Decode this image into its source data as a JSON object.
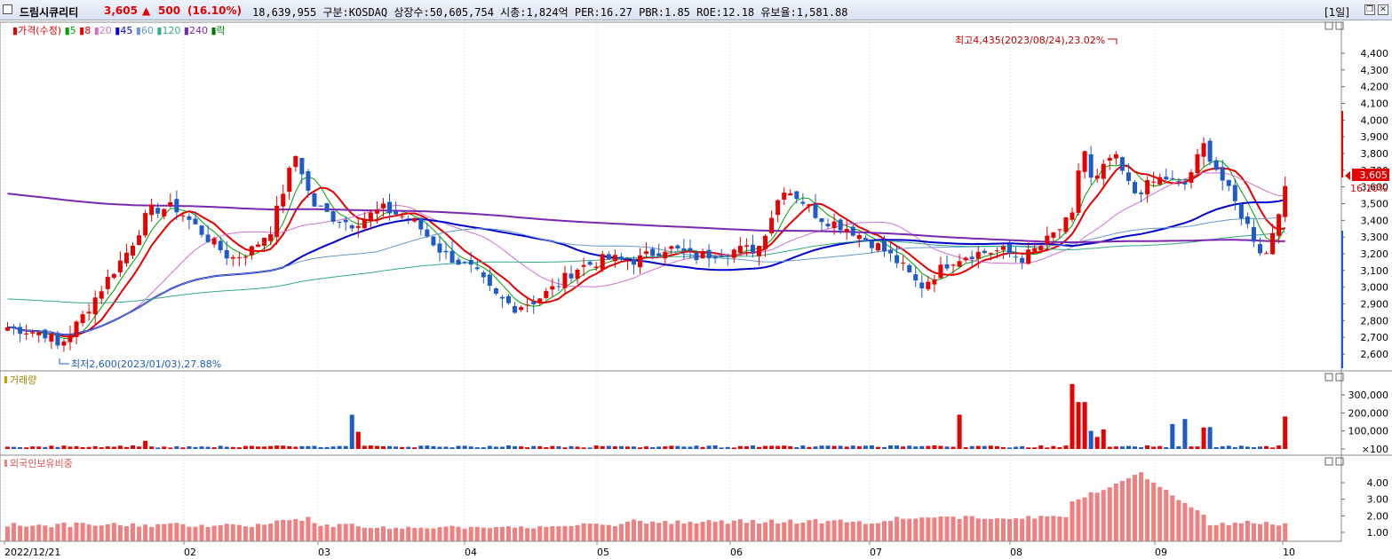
{
  "header": {
    "name": "드림시큐리티",
    "price": "3,605",
    "up_symbol": "▲",
    "change": "500",
    "change_pct": "(16.10%)",
    "info": "18,639,955  구분:KOSDAQ 상장수:50,605,754 시총:1,824억 PER:16.27 PBR:1.85 ROE:12.18 유보율:1,581.88",
    "period": "[1일]",
    "restore_glyph": "❐",
    "close_glyph": "✕"
  },
  "price_panel": {
    "legend": [
      {
        "label": "가격(수정)",
        "color": "#e60000"
      },
      {
        "label": "5",
        "color": "#00a000"
      },
      {
        "label": "8",
        "color": "#e60000"
      },
      {
        "label": "20",
        "color": "#d070d0"
      },
      {
        "label": "45",
        "color": "#0000cc"
      },
      {
        "label": "60",
        "color": "#6699cc"
      },
      {
        "label": "120",
        "color": "#33aa88"
      },
      {
        "label": "240",
        "color": "#7a28b0"
      },
      {
        "label": "락",
        "color": "#007700"
      }
    ],
    "y_ticks": [
      "4,400",
      "4,300",
      "4,200",
      "4,100",
      "4,000",
      "3,900",
      "3,800",
      "3,700",
      "3,600",
      "3,500",
      "3,400",
      "3,300",
      "3,200",
      "3,100",
      "3,000",
      "2,900",
      "2,800",
      "2,700",
      "2,600"
    ],
    "current_price_label": "3,605",
    "current_pct_label": "16.10%",
    "high_annotation": "최고4,435(2023/08/24),23.02%",
    "low_annotation": "최저2,600(2023/01/03),27.88%"
  },
  "volume_panel": {
    "label": "거래량",
    "y_ticks": [
      "300,000",
      "200,000",
      "100,000",
      "×100"
    ]
  },
  "foreign_panel": {
    "label": "외국인보유비중",
    "y_ticks": [
      "4.00",
      "3.00",
      "2.00",
      "1.00"
    ]
  },
  "x_axis": {
    "labels": [
      "2022/12/21",
      "02",
      "03",
      "04",
      "05",
      "06",
      "07",
      "08",
      "09",
      "10"
    ]
  },
  "colors": {
    "up": "#e60000",
    "down": "#1e5bc6",
    "volume_up": "#e60000",
    "volume_down": "#1e5bc6",
    "foreign_bar": "#f08080"
  }
}
